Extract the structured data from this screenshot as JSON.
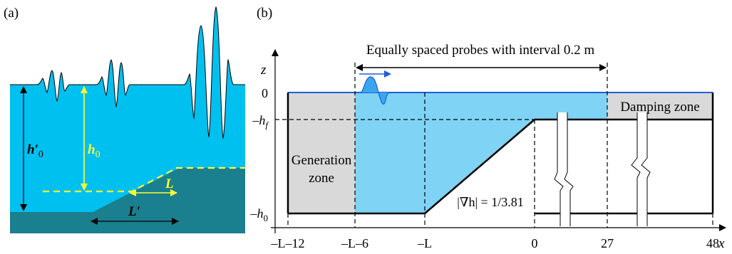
{
  "panel_a": {
    "label": "(a)",
    "h0_prime": "h′",
    "h0_prime_sub": "0",
    "h0": "h",
    "h0_sub": "0",
    "L": "L",
    "L_prime": "L′",
    "colors": {
      "water": "#00c0f0",
      "seabed": "#1a7f8e",
      "guide": "#ffff33"
    }
  },
  "panel_b": {
    "label": "(b)",
    "probes_label": "Equally spaced probes with interval 0.2 m",
    "z_label": "z",
    "x_label": "x",
    "level_zero": "0",
    "level_hf": "–h",
    "level_hf_sub": "f",
    "level_h0": "–h",
    "level_h0_sub": "0",
    "generation_zone_line1": "Generation",
    "generation_zone_line2": "zone",
    "damping_zone": "Damping zone",
    "slope_label": "|∇h| = 1/3.81",
    "x_ticks": [
      "–L–12",
      "–L–6",
      "–L",
      "0",
      "27",
      "48"
    ],
    "colors": {
      "water": "#7fd3f4",
      "zone": "#d9d9d9",
      "surface": "#1f5fd6",
      "wave": "#3aa6f0"
    }
  }
}
